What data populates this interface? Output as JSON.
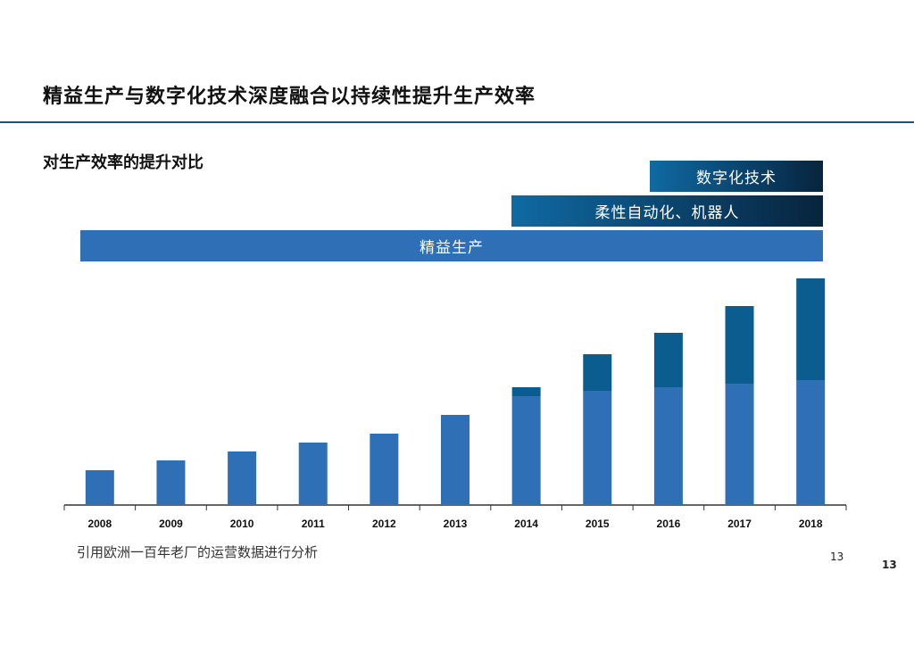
{
  "title": "精益生产与数字化技术深度融合以持续性提升生产效率",
  "subtitle": "对生产效率的提升对比",
  "bands": {
    "lean": "精益生产",
    "robot": "柔性自动化、机器人",
    "digital": "数字化技术"
  },
  "source_note": "引用欧洲一百年老厂的运营数据进行分析",
  "page_number_small": "13",
  "page_number_large": "13",
  "colors": {
    "lean": "#2e6fb5",
    "digital_robot": "#0b5d8f",
    "axis": "#333333"
  },
  "chart_data": {
    "type": "bar",
    "stacked": true,
    "categories": [
      "2008",
      "2009",
      "2010",
      "2011",
      "2012",
      "2013",
      "2014",
      "2015",
      "2016",
      "2017",
      "2018"
    ],
    "series": [
      {
        "values": [
          39,
          50,
          60,
          70,
          80,
          101,
          122,
          128,
          132,
          136,
          140
        ]
      },
      {
        "values": [
          0,
          0,
          0,
          0,
          0,
          0,
          10,
          41,
          61,
          87,
          114
        ]
      }
    ],
    "ylim": [
      0,
      260
    ],
    "grid": false,
    "xlabel": "",
    "ylabel": ""
  }
}
